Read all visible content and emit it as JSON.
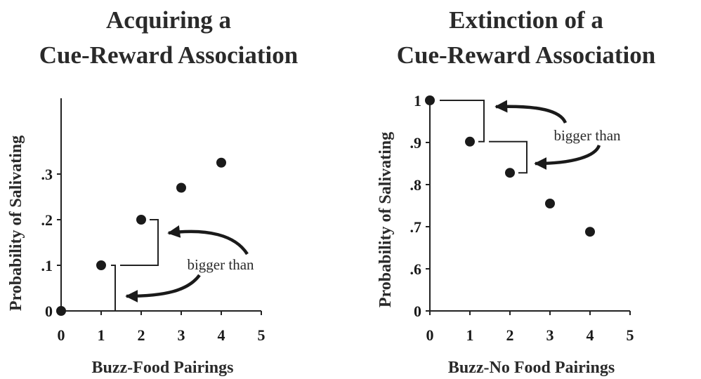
{
  "chart_data": [
    {
      "type": "scatter",
      "title": [
        "Acquiring a",
        "Cue-Reward Association"
      ],
      "xlabel": "Buzz-Food Pairings",
      "ylabel": "Probability of Salivating",
      "x": [
        0,
        1,
        2,
        3,
        4
      ],
      "y": [
        0,
        0.1,
        0.2,
        0.27,
        0.325
      ],
      "xlim": [
        0,
        5
      ],
      "ylim": [
        0,
        0.35
      ],
      "xticks": [
        "0",
        "1",
        "2",
        "3",
        "4",
        "5"
      ],
      "yticks": [
        {
          "value": 0,
          "label": "0"
        },
        {
          "value": 0.1,
          "label": ".1"
        },
        {
          "value": 0.2,
          "label": ".2"
        },
        {
          "value": 0.3,
          "label": ".3"
        }
      ],
      "annotation": "bigger than",
      "grid": false
    },
    {
      "type": "scatter",
      "title": [
        "Extinction of a",
        "Cue-Reward Association"
      ],
      "xlabel": "Buzz-No Food Pairings",
      "ylabel": "Probability of Salivating",
      "x": [
        0,
        1,
        2,
        3,
        4
      ],
      "y": [
        1.0,
        0.902,
        0.828,
        0.755,
        0.688
      ],
      "xlim": [
        0,
        5
      ],
      "ylim": [
        0.5,
        1.0
      ],
      "xticks": [
        "0",
        "1",
        "2",
        "3",
        "4",
        "5"
      ],
      "yticks": [
        {
          "value": 0.5,
          "label": "0"
        },
        {
          "value": 0.6,
          "label": ".6"
        },
        {
          "value": 0.7,
          "label": ".7"
        },
        {
          "value": 0.8,
          "label": ".8"
        },
        {
          "value": 0.9,
          "label": ".9"
        },
        {
          "value": 1.0,
          "label": "1"
        }
      ],
      "annotation": "bigger than",
      "grid": false
    }
  ]
}
